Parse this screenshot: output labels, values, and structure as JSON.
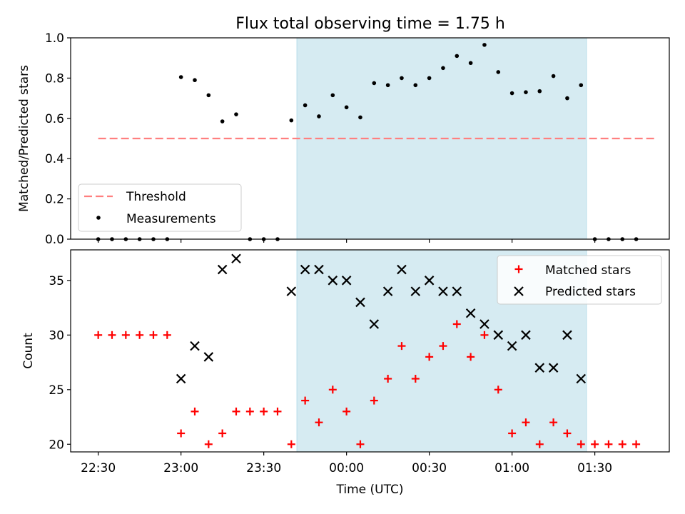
{
  "title": "Flux total observing time = 1.75 h",
  "colors": {
    "shade": "#add8e6",
    "threshold": "#ff7f7f",
    "measurement": "#000000",
    "matched": "#ff0000",
    "predicted": "#000000"
  },
  "chart_data": [
    {
      "type": "scatter",
      "ylabel": "Matched/Predicted stars",
      "ylim": [
        0,
        1.0
      ],
      "yticks": [
        0.0,
        0.2,
        0.4,
        0.6,
        0.8,
        1.0
      ],
      "ytick_labels": [
        "0.0",
        "0.2",
        "0.4",
        "0.6",
        "0.8",
        "1.0"
      ],
      "xlim": [
        "22:20",
        "01:57"
      ],
      "xticks": [
        "22:30",
        "23:00",
        "23:30",
        "00:00",
        "00:30",
        "01:00",
        "01:30"
      ],
      "shaded_span": [
        "23:42",
        "01:27"
      ],
      "threshold": {
        "name": "Threshold",
        "value": 0.5,
        "x_range": [
          "22:30",
          "01:52"
        ]
      },
      "legend": {
        "position": "lower-left",
        "entries": [
          "Threshold",
          "Measurements"
        ]
      },
      "series": [
        {
          "name": "Measurements",
          "x": [
            "22:30",
            "22:35",
            "22:40",
            "22:45",
            "22:50",
            "22:55",
            "23:00",
            "23:05",
            "23:10",
            "23:15",
            "23:20",
            "23:25",
            "23:30",
            "23:35",
            "23:40",
            "23:45",
            "23:50",
            "23:55",
            "00:00",
            "00:05",
            "00:10",
            "00:15",
            "00:20",
            "00:25",
            "00:30",
            "00:35",
            "00:40",
            "00:45",
            "00:50",
            "00:55",
            "01:00",
            "01:05",
            "01:10",
            "01:15",
            "01:20",
            "01:25",
            "01:30",
            "01:35",
            "01:40",
            "01:45"
          ],
          "y": [
            0,
            0,
            0,
            0,
            0,
            0,
            0.805,
            0.79,
            0.715,
            0.585,
            0.62,
            0,
            0,
            0,
            0.59,
            0.665,
            0.61,
            0.715,
            0.655,
            0.605,
            0.775,
            0.765,
            0.8,
            0.765,
            0.8,
            0.85,
            0.91,
            0.875,
            0.965,
            0.83,
            0.725,
            0.73,
            0.735,
            0.81,
            0.7,
            0.765,
            0,
            0,
            0,
            0
          ]
        }
      ]
    },
    {
      "type": "scatter",
      "ylabel": "Count",
      "xlabel": "Time (UTC)",
      "ylim": [
        19.3,
        37.8
      ],
      "yticks": [
        20,
        25,
        30,
        35
      ],
      "ytick_labels": [
        "20",
        "25",
        "30",
        "35"
      ],
      "xlim": [
        "22:20",
        "01:57"
      ],
      "xticks": [
        "22:30",
        "23:00",
        "23:30",
        "00:00",
        "00:30",
        "01:00",
        "01:30"
      ],
      "shaded_span": [
        "23:42",
        "01:27"
      ],
      "legend": {
        "position": "top-right",
        "entries": [
          "Matched stars",
          "Predicted stars"
        ]
      },
      "series": [
        {
          "name": "Matched stars",
          "marker": "plus",
          "x": [
            "22:30",
            "22:35",
            "22:40",
            "22:45",
            "22:50",
            "22:55",
            "23:00",
            "23:05",
            "23:10",
            "23:15",
            "23:20",
            "23:25",
            "23:30",
            "23:35",
            "23:40",
            "23:45",
            "23:50",
            "23:55",
            "00:00",
            "00:05",
            "00:10",
            "00:15",
            "00:20",
            "00:25",
            "00:30",
            "00:35",
            "00:40",
            "00:45",
            "00:50",
            "00:55",
            "01:00",
            "01:05",
            "01:10",
            "01:15",
            "01:20",
            "01:25",
            "01:30",
            "01:35",
            "01:40",
            "01:45"
          ],
          "y": [
            30,
            30,
            30,
            30,
            30,
            30,
            21,
            23,
            20,
            21,
            23,
            23,
            23,
            23,
            20,
            24,
            22,
            25,
            23,
            20,
            24,
            26,
            29,
            26,
            28,
            29,
            31,
            28,
            30,
            25,
            21,
            22,
            20,
            22,
            21,
            20,
            20,
            20,
            20,
            20
          ]
        },
        {
          "name": "Predicted stars",
          "marker": "x",
          "x": [
            "23:00",
            "23:05",
            "23:10",
            "23:15",
            "23:20",
            "23:40",
            "23:45",
            "23:50",
            "23:55",
            "00:00",
            "00:05",
            "00:10",
            "00:15",
            "00:20",
            "00:25",
            "00:30",
            "00:35",
            "00:40",
            "00:45",
            "00:50",
            "00:55",
            "01:00",
            "01:05",
            "01:10",
            "01:15",
            "01:20",
            "01:25"
          ],
          "y": [
            26,
            29,
            28,
            36,
            37,
            34,
            36,
            36,
            35,
            35,
            33,
            31,
            34,
            36,
            34,
            35,
            34,
            34,
            32,
            31,
            30,
            29,
            30,
            27,
            27,
            30,
            26
          ]
        }
      ]
    }
  ]
}
